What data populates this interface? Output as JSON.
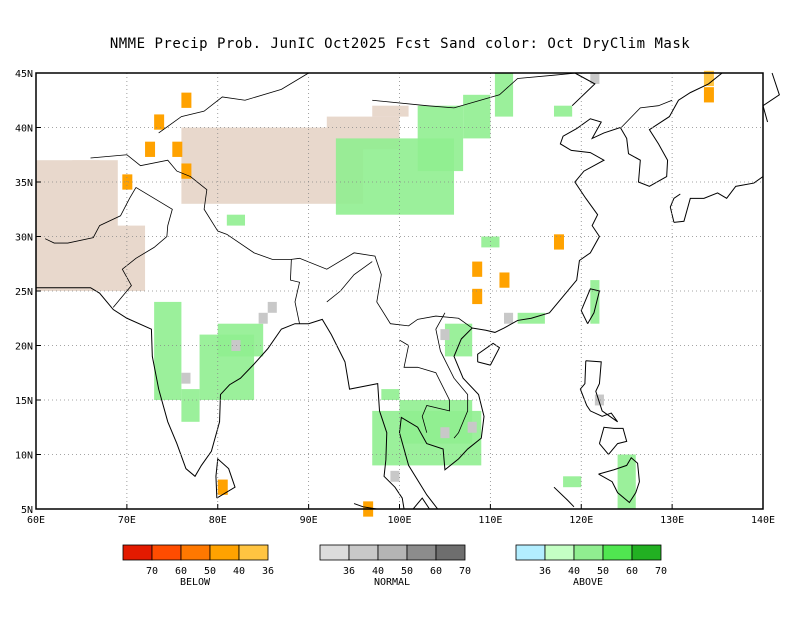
{
  "title": "NMME Precip Prob. JunIC  Oct2025 Fcst  Sand color: Oct DryClim Mask",
  "axes": {
    "lat_ticks": [
      "45N",
      "40N",
      "35N",
      "30N",
      "25N",
      "20N",
      "15N",
      "10N",
      "5N"
    ],
    "lon_ticks": [
      "60E",
      "70E",
      "80E",
      "90E",
      "100E",
      "110E",
      "120E",
      "130E",
      "140E"
    ]
  },
  "colors": {
    "sand": "#e8d8cc",
    "below": [
      "#e31a00",
      "#ff4c00",
      "#ff7800",
      "#ffa200",
      "#ffc441"
    ],
    "normal": [
      "#dcdcdc",
      "#c8c8c8",
      "#b4b4b4",
      "#8c8c8c",
      "#6e6e6e"
    ],
    "above": [
      "#b3eeff",
      "#c4ffc4",
      "#90ee90",
      "#50e650",
      "#22b022"
    ],
    "grid": "#888888",
    "coast": "#000000"
  },
  "legend": {
    "below": {
      "ticks": [
        "70",
        "60",
        "50",
        "40",
        "36"
      ],
      "label": "BELOW"
    },
    "normal": {
      "ticks": [
        "36",
        "40",
        "50",
        "60",
        "70"
      ],
      "label": "NORMAL"
    },
    "above": {
      "ticks": [
        "36",
        "40",
        "50",
        "60",
        "70"
      ],
      "label": "ABOVE"
    }
  },
  "chart_data": {
    "type": "heatmap",
    "xlim": [
      60,
      140
    ],
    "ylim": [
      5,
      45
    ],
    "sand_regions": [
      {
        "lon": [
          60,
          67
        ],
        "lat": [
          25,
          37
        ]
      },
      {
        "lon": [
          64,
          69
        ],
        "lat": [
          30,
          37
        ]
      },
      {
        "lon": [
          66,
          72
        ],
        "lat": [
          25,
          31
        ]
      },
      {
        "lon": [
          76,
          96
        ],
        "lat": [
          33,
          40
        ]
      },
      {
        "lon": [
          92,
          100
        ],
        "lat": [
          38,
          41
        ]
      },
      {
        "lon": [
          97,
          101
        ],
        "lat": [
          41,
          42
        ]
      }
    ],
    "below_cells": [
      {
        "lon": 76.5,
        "lat": 42.5,
        "level": 4
      },
      {
        "lon": 73.5,
        "lat": 40.5,
        "level": 4
      },
      {
        "lon": 72.5,
        "lat": 38,
        "level": 4
      },
      {
        "lon": 75.5,
        "lat": 38,
        "level": 4
      },
      {
        "lon": 76.5,
        "lat": 36,
        "level": 4
      },
      {
        "lon": 70,
        "lat": 35,
        "level": 4
      },
      {
        "lon": 134,
        "lat": 44.5,
        "level": 5
      },
      {
        "lon": 134,
        "lat": 43,
        "level": 4
      },
      {
        "lon": 117.5,
        "lat": 29.5,
        "level": 4
      },
      {
        "lon": 108.5,
        "lat": 27,
        "level": 4
      },
      {
        "lon": 111.5,
        "lat": 26,
        "level": 4
      },
      {
        "lon": 108.5,
        "lat": 24.5,
        "level": 4
      },
      {
        "lon": 80.5,
        "lat": 7,
        "level": 4
      },
      {
        "lon": 96.5,
        "lat": 5,
        "level": 4
      }
    ],
    "normal_cells": [
      {
        "lon": 85,
        "lat": 22.5
      },
      {
        "lon": 86,
        "lat": 23.5
      },
      {
        "lon": 82,
        "lat": 20
      },
      {
        "lon": 76.5,
        "lat": 17
      },
      {
        "lon": 105,
        "lat": 21
      },
      {
        "lon": 112,
        "lat": 22.5
      },
      {
        "lon": 122,
        "lat": 15
      },
      {
        "lon": 121.5,
        "lat": 44.5
      },
      {
        "lon": 105,
        "lat": 12
      },
      {
        "lon": 108,
        "lat": 12.5
      },
      {
        "lon": 99.5,
        "lat": 8
      }
    ],
    "above_cells": [
      {
        "lon": 93,
        "lat": 32,
        "w": 13,
        "h": 7
      },
      {
        "lon": 102,
        "lat": 36,
        "w": 5,
        "h": 6
      },
      {
        "lon": 107,
        "lat": 39,
        "w": 3,
        "h": 4
      },
      {
        "lon": 110.5,
        "lat": 41,
        "w": 2,
        "h": 4
      },
      {
        "lon": 117,
        "lat": 41,
        "w": 2,
        "h": 1
      },
      {
        "lon": 81,
        "lat": 31,
        "w": 2,
        "h": 1
      },
      {
        "lon": 73,
        "lat": 15,
        "w": 3,
        "h": 9
      },
      {
        "lon": 78,
        "lat": 15,
        "w": 6,
        "h": 6
      },
      {
        "lon": 80,
        "lat": 19,
        "w": 5,
        "h": 3
      },
      {
        "lon": 76,
        "lat": 13,
        "w": 2,
        "h": 3
      },
      {
        "lon": 97,
        "lat": 9,
        "w": 12,
        "h": 5
      },
      {
        "lon": 100,
        "lat": 11,
        "w": 8,
        "h": 4
      },
      {
        "lon": 105,
        "lat": 19,
        "w": 3,
        "h": 3
      },
      {
        "lon": 113,
        "lat": 22,
        "w": 3,
        "h": 1
      },
      {
        "lon": 121,
        "lat": 22,
        "w": 1,
        "h": 4
      },
      {
        "lon": 124,
        "lat": 5,
        "w": 2,
        "h": 5
      },
      {
        "lon": 118,
        "lat": 7,
        "w": 2,
        "h": 1
      },
      {
        "lon": 109,
        "lat": 29,
        "w": 2,
        "h": 1
      },
      {
        "lon": 98,
        "lat": 15,
        "w": 2,
        "h": 1
      }
    ]
  }
}
